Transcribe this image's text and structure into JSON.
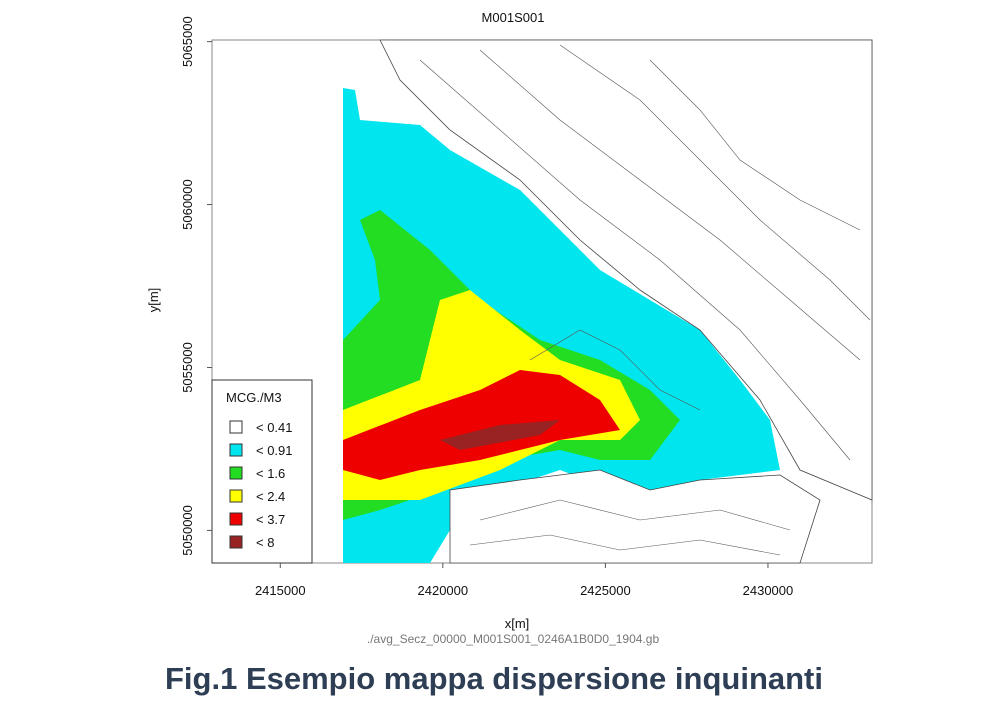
{
  "plot": {
    "title": "M001S001",
    "xlabel": "x[m]",
    "ylabel": "y[m]",
    "xlim": [
      2412900,
      2433200
    ],
    "ylim": [
      5049000,
      5065050
    ],
    "xticks": [
      2415000,
      2420000,
      2425000,
      2430000
    ],
    "yticks": [
      5050000,
      5055000,
      5060000,
      5065000
    ]
  },
  "legend": {
    "title": "MCG./M3",
    "items": [
      {
        "label": "< 0.41",
        "color": "#ffffff"
      },
      {
        "label": "< 0.91",
        "color": "#00e5ee"
      },
      {
        "label": "< 1.6",
        "color": "#22dd22"
      },
      {
        "label": "< 2.4",
        "color": "#ffff00"
      },
      {
        "label": "< 3.7",
        "color": "#ee0000"
      },
      {
        "label": "< 8",
        "color": "#992222"
      }
    ]
  },
  "file": "./avg_Secz_00000_M001S001_0246A1B0D0_1904.gb",
  "caption": "Fig.1 Esempio mappa dispersione inquinanti"
}
